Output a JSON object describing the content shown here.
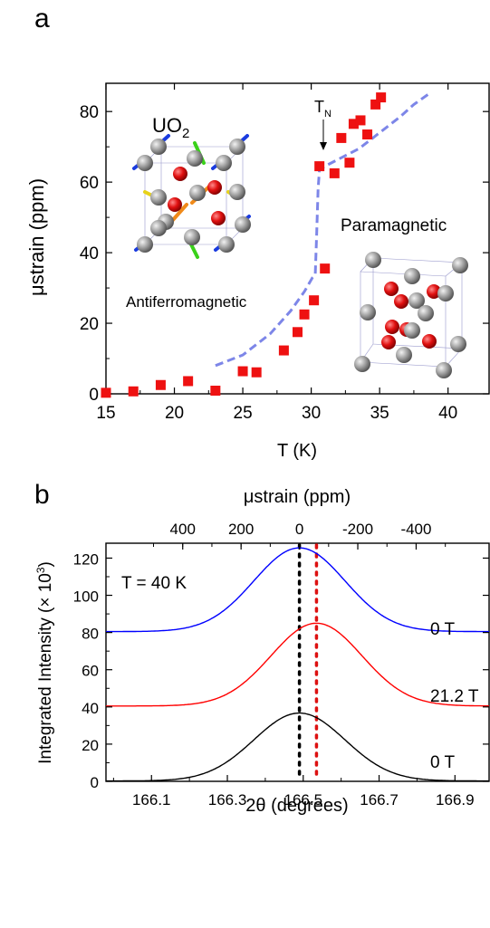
{
  "chart_data": [
    {
      "panel_label": "a",
      "type": "scatter",
      "xlabel": "T (K)",
      "ylabel": "μstrain (ppm)",
      "xlim": [
        15,
        43
      ],
      "ylim": [
        0,
        88
      ],
      "xticks": [
        15,
        20,
        25,
        30,
        35,
        40
      ],
      "yticks": [
        0,
        20,
        40,
        60,
        80
      ],
      "series": [
        {
          "kind": "points",
          "color": "#ee1111",
          "x": [
            15,
            17,
            19,
            21,
            23,
            25,
            26,
            28,
            29,
            29.5,
            30.2,
            31,
            30.6,
            31.7,
            32.2,
            32.8,
            33.1,
            33.6,
            34.1,
            34.7,
            35.1
          ],
          "y": [
            0.3,
            0.7,
            2.5,
            3.6,
            0.9,
            6.4,
            6.1,
            12.3,
            17.5,
            22.5,
            26.5,
            35.5,
            64.5,
            62.5,
            72.5,
            65.5,
            76.5,
            77.5,
            73.5,
            82,
            84
          ]
        },
        {
          "kind": "dashed-line",
          "color": "#7d86e8",
          "x": [
            23,
            25,
            27,
            28.5,
            29.5,
            30.1,
            30.3,
            30.4,
            30.5,
            30.6,
            31,
            32,
            33.5,
            35,
            36.5,
            37.5,
            38.6
          ],
          "y": [
            8,
            11,
            17,
            23.5,
            29,
            33,
            34,
            45,
            58,
            63.5,
            64.5,
            66.5,
            69.5,
            74,
            78.5,
            82,
            85
          ]
        }
      ],
      "annotations": {
        "tn": "T",
        "tn_sub": "N",
        "uo2": "UO",
        "uo2_sub": "2",
        "antiferro": "Antiferromagnetic",
        "para": "Paramagnetic"
      }
    },
    {
      "panel_label": "b",
      "type": "line",
      "xlabel": "2θ (degrees)",
      "ylabel": "Integrated Intensity (× 10",
      "ylabel_sup": "3",
      "ylabel_end": ")",
      "top_xlabel": "μstrain (ppm)",
      "xlim": [
        165.98,
        166.99
      ],
      "ylim": [
        0,
        128
      ],
      "xticks": [
        166.1,
        166.3,
        166.5,
        166.7,
        166.9
      ],
      "xticklabels": [
        "166.1",
        "166.3",
        "166.5",
        "166.7",
        "166.9"
      ],
      "yticks": [
        0,
        20,
        40,
        60,
        80,
        100,
        120
      ],
      "top_ticks": [
        400,
        200,
        0,
        -200,
        -400
      ],
      "top_tick_labels": [
        "400",
        "200",
        "0",
        "-200",
        "-400"
      ],
      "strain_zero_2theta": 166.49,
      "strain_per_degree": -1300,
      "series": [
        {
          "name": "0 T",
          "color": "#0000ff",
          "baseline": 80.5,
          "amplitude": 45,
          "center": 166.49,
          "sigma": 0.12
        },
        {
          "name": "21.2 T",
          "color": "#ff0000",
          "baseline": 40.5,
          "amplitude": 44.5,
          "center": 166.535,
          "sigma": 0.12
        },
        {
          "name": "0 T",
          "color": "#000000",
          "baseline": 0.2,
          "amplitude": 36.5,
          "center": 166.49,
          "sigma": 0.12
        }
      ],
      "vlines": [
        {
          "x": 166.49,
          "color": "#000000"
        },
        {
          "x": 166.535,
          "color": "#dd1111"
        }
      ],
      "annotation": "T = 40 K"
    }
  ]
}
